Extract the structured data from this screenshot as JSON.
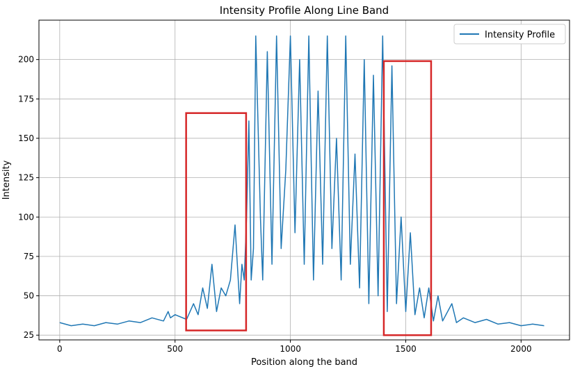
{
  "chart_data": {
    "type": "line",
    "title": "Intensity Profile Along Line Band",
    "xlabel": "Position along the band",
    "ylabel": "Intensity",
    "xlim": [
      -90,
      2210
    ],
    "ylim": [
      22,
      225
    ],
    "xticks": [
      0,
      500,
      1000,
      1500,
      2000
    ],
    "yticks": [
      25,
      50,
      75,
      100,
      125,
      150,
      175,
      200
    ],
    "grid": true,
    "legend": {
      "position": "top-right",
      "entries": [
        "Intensity Profile"
      ]
    },
    "series": [
      {
        "name": "Intensity Profile",
        "color": "#1f77b4",
        "points": [
          [
            0,
            33
          ],
          [
            50,
            31
          ],
          [
            100,
            32
          ],
          [
            150,
            31
          ],
          [
            200,
            33
          ],
          [
            250,
            32
          ],
          [
            300,
            34
          ],
          [
            350,
            33
          ],
          [
            400,
            36
          ],
          [
            450,
            34
          ],
          [
            470,
            40
          ],
          [
            480,
            36
          ],
          [
            500,
            38
          ],
          [
            550,
            35
          ],
          [
            580,
            45
          ],
          [
            600,
            38
          ],
          [
            620,
            55
          ],
          [
            640,
            42
          ],
          [
            660,
            70
          ],
          [
            680,
            40
          ],
          [
            700,
            55
          ],
          [
            720,
            50
          ],
          [
            740,
            60
          ],
          [
            760,
            95
          ],
          [
            780,
            45
          ],
          [
            790,
            70
          ],
          [
            800,
            60
          ],
          [
            810,
            100
          ],
          [
            820,
            161
          ],
          [
            830,
            60
          ],
          [
            840,
            80
          ],
          [
            850,
            215
          ],
          [
            870,
            100
          ],
          [
            880,
            60
          ],
          [
            900,
            205
          ],
          [
            920,
            70
          ],
          [
            940,
            215
          ],
          [
            960,
            80
          ],
          [
            980,
            130
          ],
          [
            1000,
            215
          ],
          [
            1020,
            90
          ],
          [
            1040,
            200
          ],
          [
            1060,
            70
          ],
          [
            1080,
            215
          ],
          [
            1100,
            60
          ],
          [
            1120,
            180
          ],
          [
            1140,
            70
          ],
          [
            1160,
            215
          ],
          [
            1180,
            80
          ],
          [
            1200,
            150
          ],
          [
            1220,
            60
          ],
          [
            1240,
            215
          ],
          [
            1260,
            70
          ],
          [
            1280,
            140
          ],
          [
            1300,
            55
          ],
          [
            1320,
            200
          ],
          [
            1340,
            45
          ],
          [
            1360,
            190
          ],
          [
            1380,
            50
          ],
          [
            1400,
            215
          ],
          [
            1420,
            40
          ],
          [
            1440,
            196
          ],
          [
            1460,
            45
          ],
          [
            1480,
            100
          ],
          [
            1500,
            40
          ],
          [
            1520,
            90
          ],
          [
            1540,
            38
          ],
          [
            1560,
            55
          ],
          [
            1580,
            36
          ],
          [
            1600,
            55
          ],
          [
            1620,
            34
          ],
          [
            1640,
            50
          ],
          [
            1660,
            34
          ],
          [
            1700,
            45
          ],
          [
            1720,
            33
          ],
          [
            1750,
            36
          ],
          [
            1800,
            33
          ],
          [
            1850,
            35
          ],
          [
            1900,
            32
          ],
          [
            1950,
            33
          ],
          [
            2000,
            31
          ],
          [
            2050,
            32
          ],
          [
            2100,
            31
          ]
        ]
      }
    ],
    "annotations": [
      {
        "type": "rectangle",
        "color": "#d62728",
        "x_range": [
          548,
          808
        ],
        "y_range": [
          28,
          166
        ]
      },
      {
        "type": "rectangle",
        "color": "#d62728",
        "x_range": [
          1405,
          1610
        ],
        "y_range": [
          25,
          199
        ]
      }
    ]
  }
}
